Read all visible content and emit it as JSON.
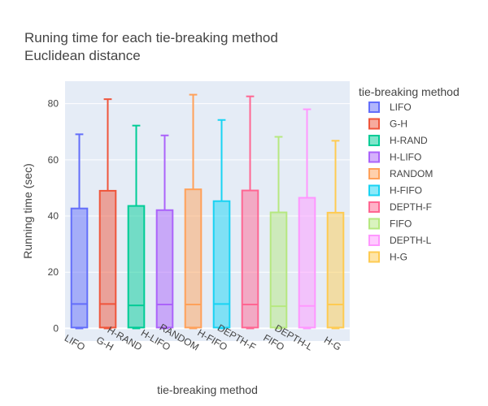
{
  "chart_data": {
    "type": "box",
    "title_lines": [
      "Runing time for each tie-breaking method",
      "Euclidean distance"
    ],
    "xlabel": "tie-breaking method",
    "ylabel": "Running time (sec)",
    "ylim": [
      -4.5,
      88
    ],
    "yticks": [
      0,
      20,
      40,
      60,
      80
    ],
    "grid": true,
    "legend": {
      "title": "tie-breaking method",
      "placement": "right"
    },
    "series": [
      {
        "name": "LIFO",
        "color": "#636efa",
        "min": 0,
        "q1": 0.3,
        "median": 8.7,
        "q3": 42.7,
        "max": 69.1
      },
      {
        "name": "G-H",
        "color": "#ef553b",
        "min": 0,
        "q1": 0.3,
        "median": 8.7,
        "q3": 49.0,
        "max": 81.6
      },
      {
        "name": "H-RAND",
        "color": "#00cc96",
        "min": 0,
        "q1": 0.3,
        "median": 8.2,
        "q3": 43.6,
        "max": 72.2
      },
      {
        "name": "H-LIFO",
        "color": "#ab63fa",
        "min": 0,
        "q1": 0.3,
        "median": 8.5,
        "q3": 42.1,
        "max": 68.7
      },
      {
        "name": "RANDOM",
        "color": "#ffa15a",
        "min": 0,
        "q1": 0.3,
        "median": 8.5,
        "q3": 49.5,
        "max": 83.2
      },
      {
        "name": "H-FIFO",
        "color": "#19d3f3",
        "min": 0,
        "q1": 0.3,
        "median": 8.7,
        "q3": 45.3,
        "max": 74.2
      },
      {
        "name": "DEPTH-F",
        "color": "#ff6692",
        "min": 0,
        "q1": 0.3,
        "median": 8.5,
        "q3": 49.1,
        "max": 82.6
      },
      {
        "name": "FIFO",
        "color": "#b6e880",
        "min": 0,
        "q1": 0.3,
        "median": 7.9,
        "q3": 41.3,
        "max": 68.2
      },
      {
        "name": "DEPTH-L",
        "color": "#ff97ff",
        "min": 0,
        "q1": 0.3,
        "median": 8.0,
        "q3": 46.5,
        "max": 78.0
      },
      {
        "name": "H-G",
        "color": "#fecb52",
        "min": 0,
        "q1": 0.3,
        "median": 8.5,
        "q3": 41.2,
        "max": 66.8
      }
    ]
  }
}
